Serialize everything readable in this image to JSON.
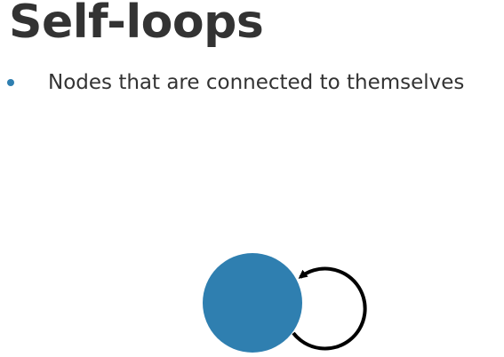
{
  "slide": {
    "title": "Self-loops",
    "bullets": [
      {
        "text": "Nodes that are connected to themselves"
      }
    ]
  },
  "diagram": {
    "node": {
      "label": "",
      "fill_color": "#2f7fb0"
    },
    "edge": {
      "type": "self-loop",
      "directed": true,
      "stroke_color": "#000000"
    }
  },
  "colors": {
    "bullet": "#2f7fb0",
    "text": "#333333"
  }
}
